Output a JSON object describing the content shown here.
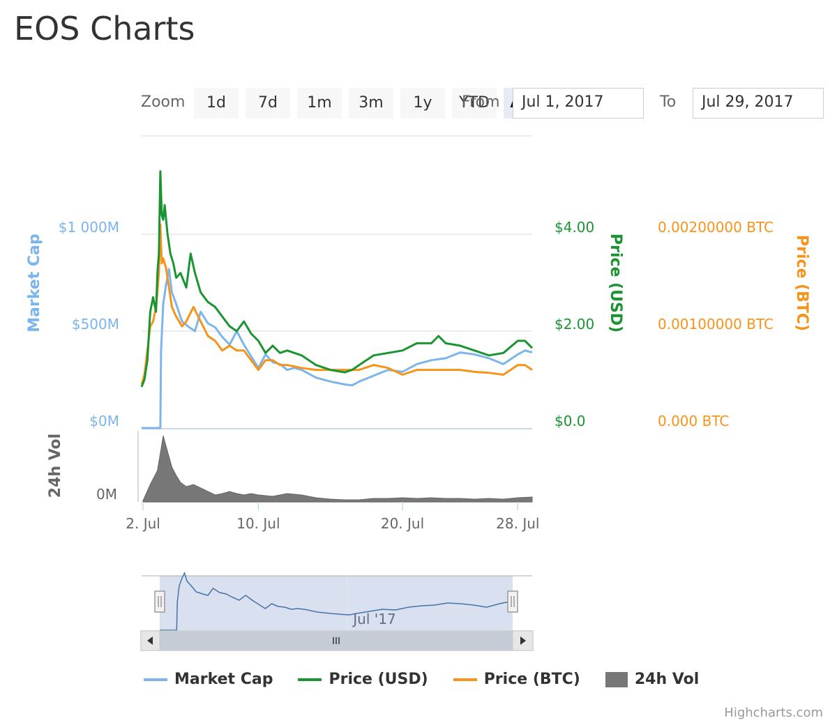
{
  "page": {
    "title": "EOS Charts"
  },
  "range_selector": {
    "zoom_label": "Zoom",
    "buttons": [
      {
        "label": "1d",
        "active": false
      },
      {
        "label": "7d",
        "active": false
      },
      {
        "label": "1m",
        "active": false
      },
      {
        "label": "3m",
        "active": false
      },
      {
        "label": "1y",
        "active": false
      },
      {
        "label": "YTD",
        "active": false
      },
      {
        "label": "ALL",
        "active": true
      }
    ],
    "from_label": "From",
    "from_value": "Jul 1, 2017",
    "to_label": "To",
    "to_value": "Jul 29, 2017"
  },
  "credits": "Highcharts.com",
  "colors": {
    "market_cap": "#7cb5ec",
    "price_usd": "#1a9431",
    "price_btc": "#f7931a",
    "volume": "#777777"
  },
  "chart_data": {
    "type": "line",
    "x_ticks": [
      "2. Jul",
      "10. Jul",
      "20. Jul",
      "28. Jul"
    ],
    "navigator_label": "Jul '17",
    "y_axes": {
      "market_cap": {
        "title": "Market Cap",
        "ticks": [
          "$0M",
          "$500M",
          "$1 000M"
        ],
        "range": [
          0,
          1000
        ]
      },
      "price_usd": {
        "title": "Price (USD)",
        "ticks": [
          "$0.0",
          "$2.00",
          "$4.00"
        ],
        "range": [
          0,
          4
        ]
      },
      "price_btc": {
        "title": "Price (BTC)",
        "ticks": [
          "0.000 BTC",
          "0.00100000 BTC",
          "0.00200000 BTC"
        ],
        "range": [
          0,
          0.002
        ]
      },
      "volume": {
        "title": "24h Vol",
        "ticks": [
          "0M"
        ]
      }
    },
    "x_range_days": [
      1.9,
      29.0
    ],
    "series": [
      {
        "name": "Market Cap",
        "key": "market_cap",
        "x": [
          1.9,
          3.2,
          3.25,
          3.4,
          3.6,
          3.8,
          4.0,
          4.3,
          4.7,
          5.2,
          5.6,
          6.0,
          6.5,
          7.0,
          7.5,
          8.0,
          8.5,
          9.0,
          9.5,
          10.0,
          10.5,
          11.0,
          11.5,
          12.0,
          12.5,
          13.0,
          14.0,
          15.0,
          16.0,
          16.5,
          17.0,
          18.0,
          19.0,
          20.0,
          21.0,
          22.0,
          23.0,
          24.0,
          25.0,
          26.0,
          27.0,
          28.0,
          28.5,
          29.0
        ],
        "values": [
          0,
          0,
          400,
          640,
          740,
          820,
          700,
          640,
          550,
          520,
          500,
          600,
          540,
          520,
          470,
          430,
          500,
          430,
          370,
          310,
          380,
          340,
          330,
          300,
          310,
          300,
          260,
          240,
          225,
          220,
          240,
          270,
          300,
          290,
          330,
          350,
          360,
          390,
          380,
          360,
          330,
          380,
          400,
          390
        ]
      },
      {
        "name": "Price (USD)",
        "key": "price_usd",
        "x": [
          1.9,
          2.1,
          2.3,
          2.5,
          2.7,
          2.9,
          3.0,
          3.1,
          3.2,
          3.3,
          3.4,
          3.5,
          3.7,
          3.9,
          4.1,
          4.3,
          4.6,
          5.0,
          5.3,
          5.6,
          6.0,
          6.5,
          7.0,
          7.5,
          8.0,
          8.5,
          9.0,
          9.5,
          10.0,
          10.5,
          11.0,
          11.5,
          12.0,
          12.5,
          13.0,
          14.0,
          15.0,
          16.0,
          16.5,
          17.0,
          18.0,
          19.0,
          20.0,
          21.0,
          22.0,
          22.5,
          23.0,
          24.0,
          25.0,
          26.0,
          27.0,
          28.0,
          28.5,
          29.0
        ],
        "values": [
          0.85,
          1.0,
          1.4,
          2.4,
          2.7,
          2.4,
          3.2,
          3.6,
          5.3,
          4.4,
          4.3,
          4.6,
          4.0,
          3.6,
          3.4,
          3.1,
          3.2,
          2.9,
          3.6,
          3.2,
          2.8,
          2.6,
          2.5,
          2.3,
          2.1,
          2.0,
          2.2,
          1.95,
          1.8,
          1.55,
          1.7,
          1.55,
          1.6,
          1.55,
          1.5,
          1.3,
          1.2,
          1.15,
          1.2,
          1.3,
          1.5,
          1.55,
          1.6,
          1.75,
          1.75,
          1.9,
          1.75,
          1.7,
          1.6,
          1.5,
          1.55,
          1.8,
          1.8,
          1.65
        ]
      },
      {
        "name": "Price (BTC)",
        "key": "price_btc",
        "x": [
          1.9,
          2.1,
          2.3,
          2.5,
          2.7,
          2.9,
          3.0,
          3.1,
          3.2,
          3.3,
          3.4,
          3.6,
          3.8,
          4.0,
          4.3,
          4.7,
          5.0,
          5.5,
          6.0,
          6.5,
          7.0,
          7.5,
          8.0,
          8.5,
          9.0,
          9.5,
          10.0,
          10.5,
          11.0,
          11.5,
          12.0,
          13.0,
          14.0,
          15.0,
          16.0,
          17.0,
          18.0,
          19.0,
          20.0,
          21.0,
          22.0,
          23.0,
          24.0,
          25.0,
          26.0,
          27.0,
          28.0,
          28.5,
          29.0
        ],
        "values": [
          0.00045,
          0.00055,
          0.0008,
          0.00105,
          0.0011,
          0.00125,
          0.0014,
          0.0016,
          0.0021,
          0.0017,
          0.00175,
          0.00165,
          0.00145,
          0.00125,
          0.00115,
          0.00105,
          0.0011,
          0.00125,
          0.0011,
          0.00095,
          0.0009,
          0.0008,
          0.00085,
          0.0008,
          0.0008,
          0.0007,
          0.0006,
          0.0007,
          0.0007,
          0.00065,
          0.00065,
          0.00062,
          0.0006,
          0.0006,
          0.0006,
          0.0006,
          0.00065,
          0.00062,
          0.00055,
          0.0006,
          0.0006,
          0.0006,
          0.0006,
          0.00058,
          0.00057,
          0.00055,
          0.00065,
          0.00065,
          0.0006
        ]
      },
      {
        "name": "24h Vol",
        "key": "volume",
        "x": [
          2.0,
          2.5,
          3.0,
          3.2,
          3.4,
          3.6,
          3.8,
          4.0,
          4.3,
          4.6,
          5.0,
          5.5,
          6.0,
          6.5,
          7.0,
          7.5,
          8.0,
          8.5,
          9.0,
          9.5,
          10.0,
          11.0,
          12.0,
          13.0,
          14.0,
          15.0,
          16.0,
          17.0,
          18.0,
          19.0,
          20.0,
          21.0,
          22.0,
          23.0,
          24.0,
          25.0,
          26.0,
          27.0,
          28.0,
          29.0
        ],
        "values": [
          0.02,
          0.25,
          0.45,
          0.7,
          0.95,
          0.8,
          0.65,
          0.5,
          0.38,
          0.28,
          0.22,
          0.25,
          0.2,
          0.15,
          0.1,
          0.12,
          0.15,
          0.12,
          0.1,
          0.12,
          0.1,
          0.08,
          0.12,
          0.1,
          0.06,
          0.04,
          0.03,
          0.03,
          0.05,
          0.05,
          0.06,
          0.05,
          0.06,
          0.05,
          0.05,
          0.04,
          0.05,
          0.04,
          0.06,
          0.07
        ]
      }
    ]
  }
}
